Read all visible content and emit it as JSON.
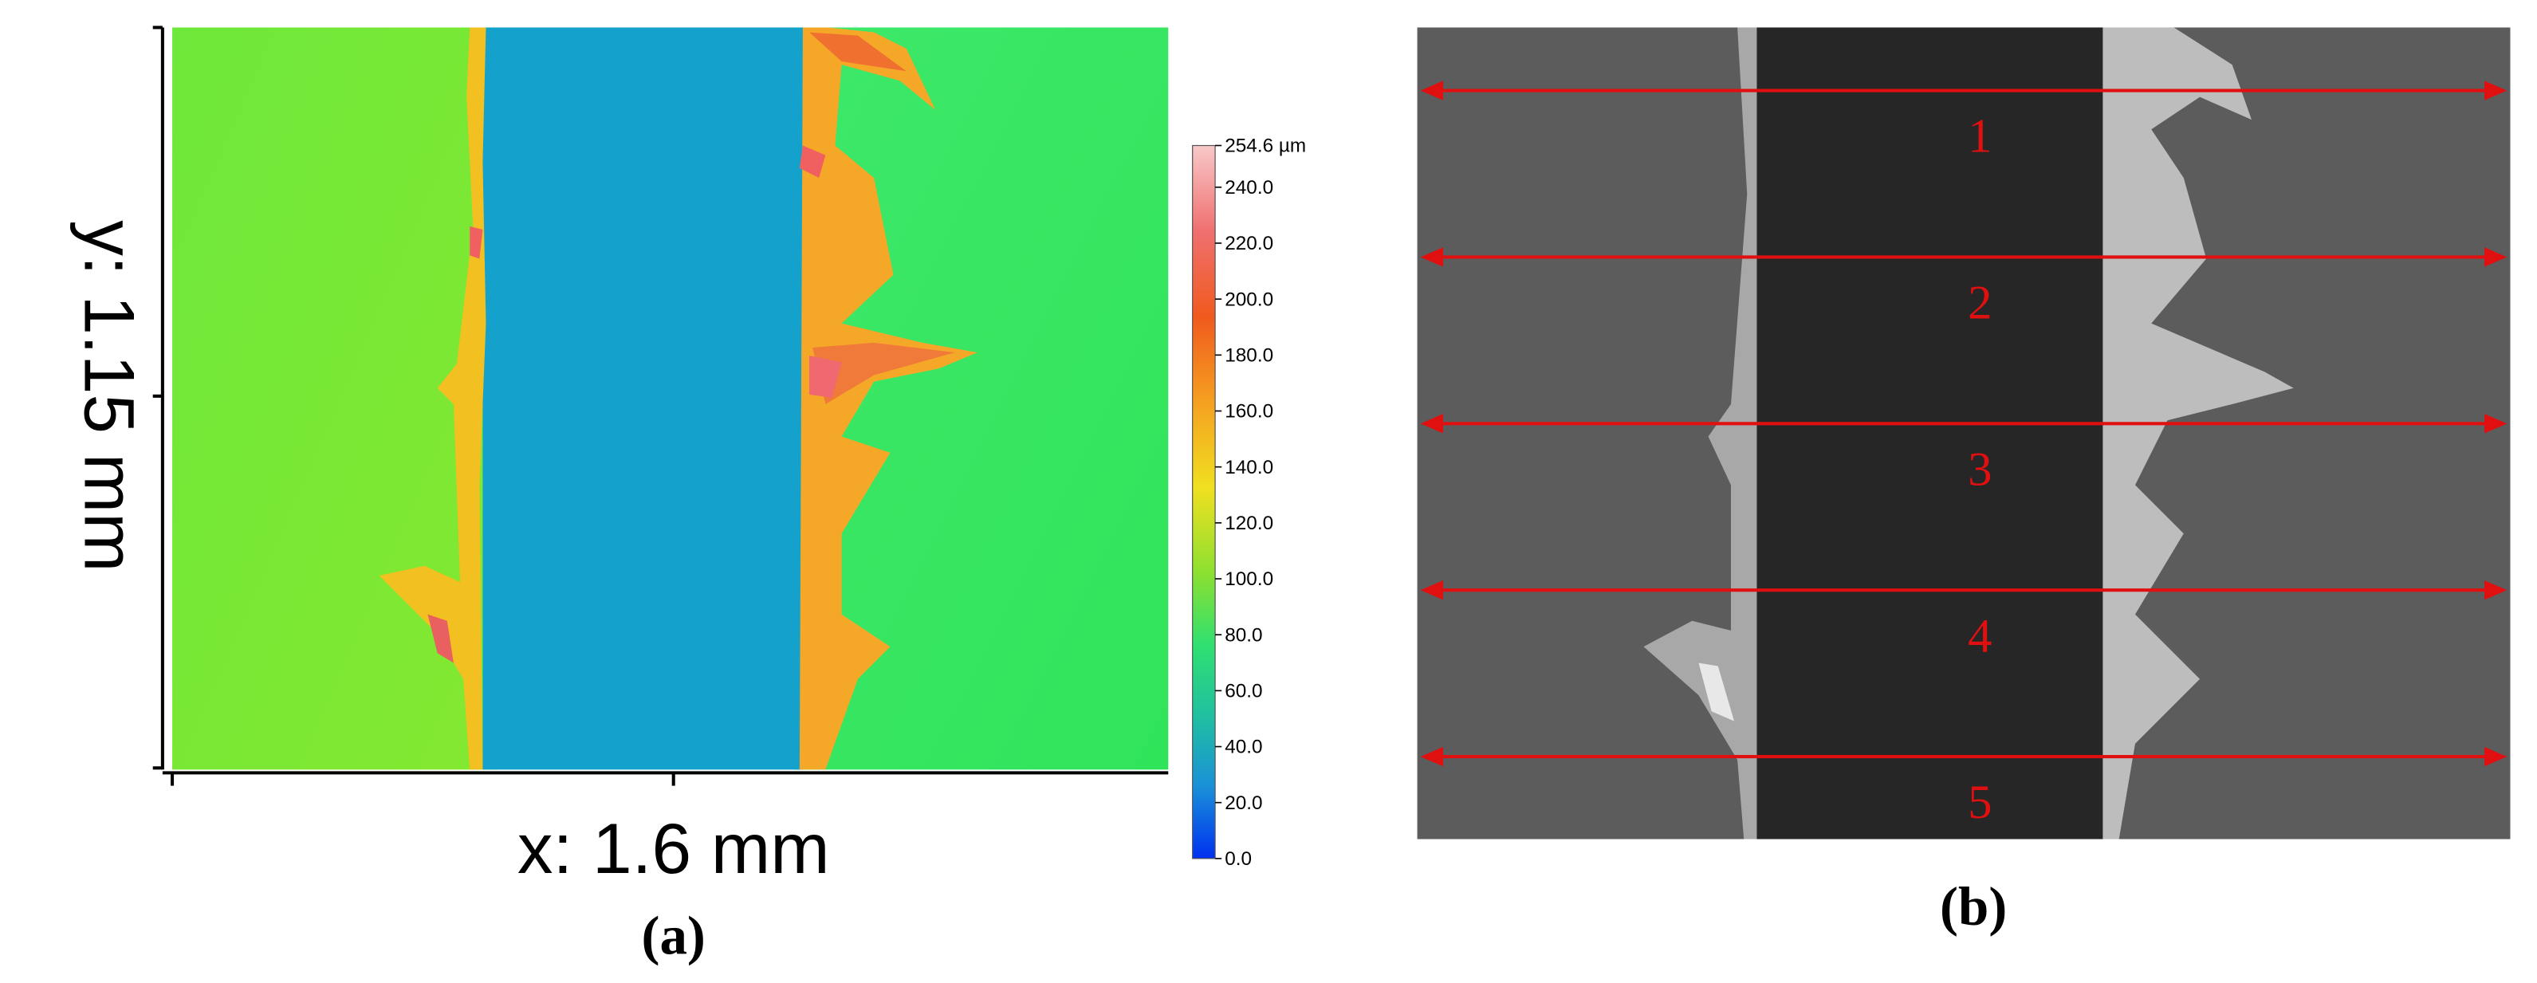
{
  "panel_a": {
    "x_label": "x: 1.6 mm",
    "y_label": "y: 1.15 mm",
    "caption": "(a)",
    "colorbar_labels": [
      "254.6 µm",
      "240.0",
      "220.0",
      "200.0",
      "180.0",
      "160.0",
      "140.0",
      "120.0",
      "100.0",
      "80.0",
      "60.0",
      "40.0",
      "20.0",
      "0.0"
    ]
  },
  "panel_b": {
    "line_labels": [
      "1",
      "2",
      "3",
      "4",
      "5"
    ],
    "caption": "(b)"
  }
}
